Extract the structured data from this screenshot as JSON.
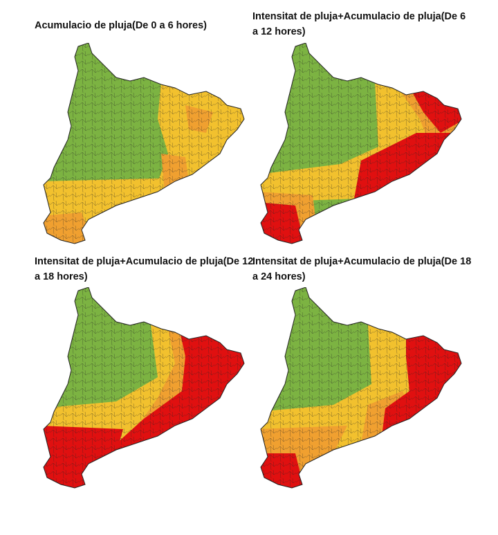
{
  "panels": [
    {
      "title": "Acumulacio de pluja(De 0 a 6 hores)"
    },
    {
      "title": "Intensitat de pluja+Acumulacio de pluja(De 6 a 12 hores)"
    },
    {
      "title": "Intensitat de pluja+Acumulacio de pluja(De 12 a 18 hores)"
    },
    {
      "title": "Intensitat de pluja+Acumulacio de pluja(De 18 a 24 hores)"
    }
  ]
}
